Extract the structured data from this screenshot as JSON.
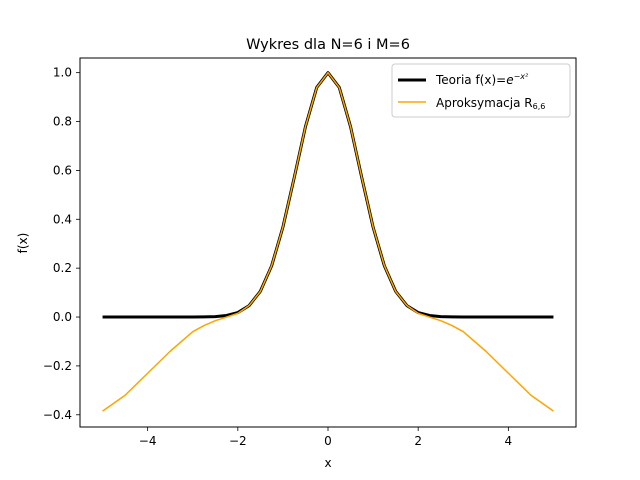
{
  "chart_data": {
    "type": "line",
    "title": "Wykres dla N=6 i M=6",
    "xlabel": "x",
    "ylabel": "f(x)",
    "xlim": [
      -5.5,
      5.5
    ],
    "ylim": [
      -0.45,
      1.06
    ],
    "xticks": [
      -4,
      -2,
      0,
      2,
      4
    ],
    "yticks": [
      -0.4,
      -0.2,
      0.0,
      0.2,
      0.4,
      0.6,
      0.8,
      1.0
    ],
    "xtick_labels": [
      "−4",
      "−2",
      "0",
      "2",
      "4"
    ],
    "ytick_labels": [
      "−0.4",
      "−0.2",
      "0.0",
      "0.2",
      "0.4",
      "0.6",
      "0.8",
      "1.0"
    ],
    "legend_placement": "upper-right",
    "series": [
      {
        "name": "Teoria f(x)=e^(−x²)",
        "legend_prefix": "Teoria f(x)=",
        "legend_math": "e",
        "legend_sup": "−x²",
        "color": "#000000",
        "x": [
          -5.0,
          -4.5,
          -4.0,
          -3.5,
          -3.0,
          -2.75,
          -2.5,
          -2.25,
          -2.0,
          -1.75,
          -1.5,
          -1.25,
          -1.0,
          -0.75,
          -0.5,
          -0.25,
          0.0,
          0.25,
          0.5,
          0.75,
          1.0,
          1.25,
          1.5,
          1.75,
          2.0,
          2.25,
          2.5,
          2.75,
          3.0,
          3.5,
          4.0,
          4.5,
          5.0
        ],
        "values": [
          0.0,
          0.0,
          0.0,
          0.0,
          0.0001,
          0.0005,
          0.0019,
          0.0063,
          0.0183,
          0.0468,
          0.1054,
          0.2096,
          0.3679,
          0.5698,
          0.7788,
          0.9394,
          1.0,
          0.9394,
          0.7788,
          0.5698,
          0.3679,
          0.2096,
          0.1054,
          0.0468,
          0.0183,
          0.0063,
          0.0019,
          0.0005,
          0.0001,
          0.0,
          0.0,
          0.0,
          0.0
        ]
      },
      {
        "name": "Aproksymacja R₆,₆",
        "legend_prefix": "Aproksymacja R",
        "legend_sub": "6,6",
        "color": "#ffa500",
        "x": [
          -5.0,
          -4.5,
          -4.0,
          -3.5,
          -3.0,
          -2.75,
          -2.5,
          -2.25,
          -2.0,
          -1.75,
          -1.5,
          -1.25,
          -1.0,
          -0.75,
          -0.5,
          -0.25,
          0.0,
          0.25,
          0.5,
          0.75,
          1.0,
          1.25,
          1.5,
          1.75,
          2.0,
          2.25,
          2.5,
          2.75,
          3.0,
          3.5,
          4.0,
          4.5,
          5.0
        ],
        "values": [
          -0.385,
          -0.32,
          -0.23,
          -0.14,
          -0.06,
          -0.035,
          -0.015,
          0.0,
          0.015,
          0.047,
          0.105,
          0.21,
          0.368,
          0.57,
          0.779,
          0.939,
          1.0,
          0.939,
          0.779,
          0.57,
          0.368,
          0.21,
          0.105,
          0.047,
          0.015,
          0.0,
          -0.015,
          -0.035,
          -0.06,
          -0.14,
          -0.23,
          -0.32,
          -0.385
        ]
      }
    ]
  }
}
